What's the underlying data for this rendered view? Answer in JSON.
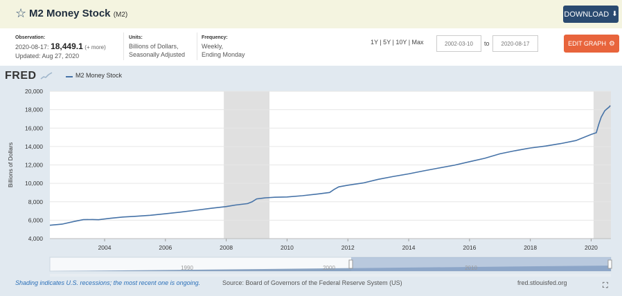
{
  "header": {
    "title": "M2 Money Stock",
    "series_code": "(M2)",
    "download_label": "DOWNLOAD"
  },
  "meta": {
    "observation_label": "Observation:",
    "observation_date": "2020-08-17:",
    "observation_value": "18,449.1",
    "more_label": "(+ more)",
    "updated": "Updated: Aug 27, 2020",
    "units_label": "Units:",
    "units_line1": "Billions of Dollars,",
    "units_line2": "Seasonally Adjusted",
    "frequency_label": "Frequency:",
    "frequency_line1": "Weekly,",
    "frequency_line2": "Ending Monday"
  },
  "controls": {
    "ranges": "1Y | 5Y | 10Y | Max",
    "start_date": "2002-03-10",
    "to_label": "to",
    "end_date": "2020-08-17",
    "edit_label": "EDIT GRAPH"
  },
  "brand": {
    "logo": "FRED",
    "accent": "#4572a7",
    "recession_color": "#e0e0e0"
  },
  "chart_data": {
    "type": "line",
    "legend": "M2 Money Stock",
    "ylabel": "Billions of Dollars",
    "xlabel": "",
    "xlim": [
      2002.2,
      2020.65
    ],
    "ylim": [
      4000,
      20000
    ],
    "yticks": [
      4000,
      6000,
      8000,
      10000,
      12000,
      14000,
      16000,
      18000,
      20000
    ],
    "ytick_labels": [
      "4,000",
      "6,000",
      "8,000",
      "10,000",
      "12,000",
      "14,000",
      "16,000",
      "18,000",
      "20,000"
    ],
    "xticks": [
      2004,
      2006,
      2008,
      2010,
      2012,
      2014,
      2016,
      2018,
      2020
    ],
    "xtick_labels": [
      "2004",
      "2006",
      "2008",
      "2010",
      "2012",
      "2014",
      "2016",
      "2018",
      "2020"
    ],
    "recessions": [
      [
        2007.92,
        2009.42
      ],
      [
        2020.08,
        2020.65
      ]
    ],
    "series": [
      {
        "name": "M2 Money Stock",
        "x": [
          2002.2,
          2002.6,
          2003.0,
          2003.3,
          2003.6,
          2003.8,
          2004.2,
          2004.6,
          2005.0,
          2005.5,
          2006.0,
          2006.5,
          2007.0,
          2007.5,
          2008.0,
          2008.3,
          2008.7,
          2008.85,
          2009.0,
          2009.3,
          2009.6,
          2010.0,
          2010.5,
          2011.0,
          2011.4,
          2011.55,
          2011.7,
          2012.0,
          2012.5,
          2013.0,
          2013.5,
          2014.0,
          2014.5,
          2015.0,
          2015.5,
          2016.0,
          2016.5,
          2017.0,
          2017.5,
          2018.0,
          2018.5,
          2019.0,
          2019.5,
          2020.0,
          2020.17,
          2020.25,
          2020.33,
          2020.45,
          2020.6,
          2020.63
        ],
        "values": [
          5450,
          5570,
          5860,
          6060,
          6070,
          6050,
          6210,
          6340,
          6420,
          6530,
          6700,
          6880,
          7080,
          7290,
          7480,
          7640,
          7800,
          8000,
          8310,
          8430,
          8490,
          8520,
          8660,
          8840,
          9010,
          9350,
          9620,
          9800,
          10040,
          10440,
          10750,
          11030,
          11360,
          11670,
          11970,
          12350,
          12720,
          13210,
          13550,
          13840,
          14050,
          14320,
          14650,
          15310,
          15500,
          16400,
          17200,
          17900,
          18320,
          18449
        ]
      }
    ]
  },
  "navigator": {
    "labels": [
      "1990",
      "2000",
      "2010"
    ]
  },
  "footer": {
    "note": "Shading indicates U.S. recessions; the most recent one is ongoing.",
    "source": "Source: Board of Governors of the Federal Reserve System (US)",
    "site": "fred.stlouisfed.org"
  }
}
